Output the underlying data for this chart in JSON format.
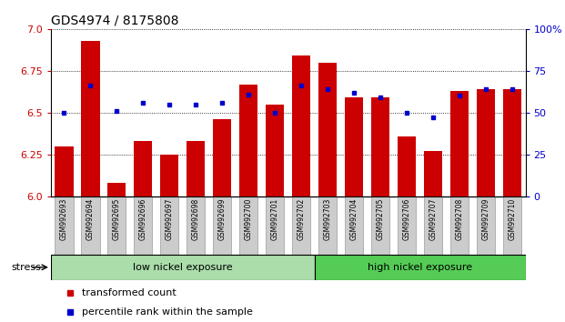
{
  "title": "GDS4974 / 8175808",
  "samples": [
    "GSM992693",
    "GSM992694",
    "GSM992695",
    "GSM992696",
    "GSM992697",
    "GSM992698",
    "GSM992699",
    "GSM992700",
    "GSM992701",
    "GSM992702",
    "GSM992703",
    "GSM992704",
    "GSM992705",
    "GSM992706",
    "GSM992707",
    "GSM992708",
    "GSM992709",
    "GSM992710"
  ],
  "red_values": [
    6.3,
    6.93,
    6.08,
    6.33,
    6.25,
    6.33,
    6.46,
    6.67,
    6.55,
    6.84,
    6.8,
    6.59,
    6.59,
    6.36,
    6.27,
    6.63,
    6.64,
    6.64
  ],
  "blue_pct": [
    50,
    66,
    51,
    56,
    55,
    55,
    56,
    61,
    50,
    66,
    64,
    62,
    59,
    50,
    47,
    60,
    64,
    64
  ],
  "group1_label": "low nickel exposure",
  "group2_label": "high nickel exposure",
  "group1_count": 10,
  "group2_count": 8,
  "stress_label": "stress",
  "legend1": "transformed count",
  "legend2": "percentile rank within the sample",
  "ymin": 6.0,
  "ymax": 7.0,
  "yticks_left": [
    6.0,
    6.25,
    6.5,
    6.75,
    7.0
  ],
  "yticks_right": [
    0,
    25,
    50,
    75,
    100
  ],
  "bar_color": "#cc0000",
  "dot_color": "#0000cc",
  "group1_bg": "#aaddaa",
  "group2_bg": "#55cc55",
  "xticklabel_bg": "#cccccc",
  "grid_color": "#000000"
}
